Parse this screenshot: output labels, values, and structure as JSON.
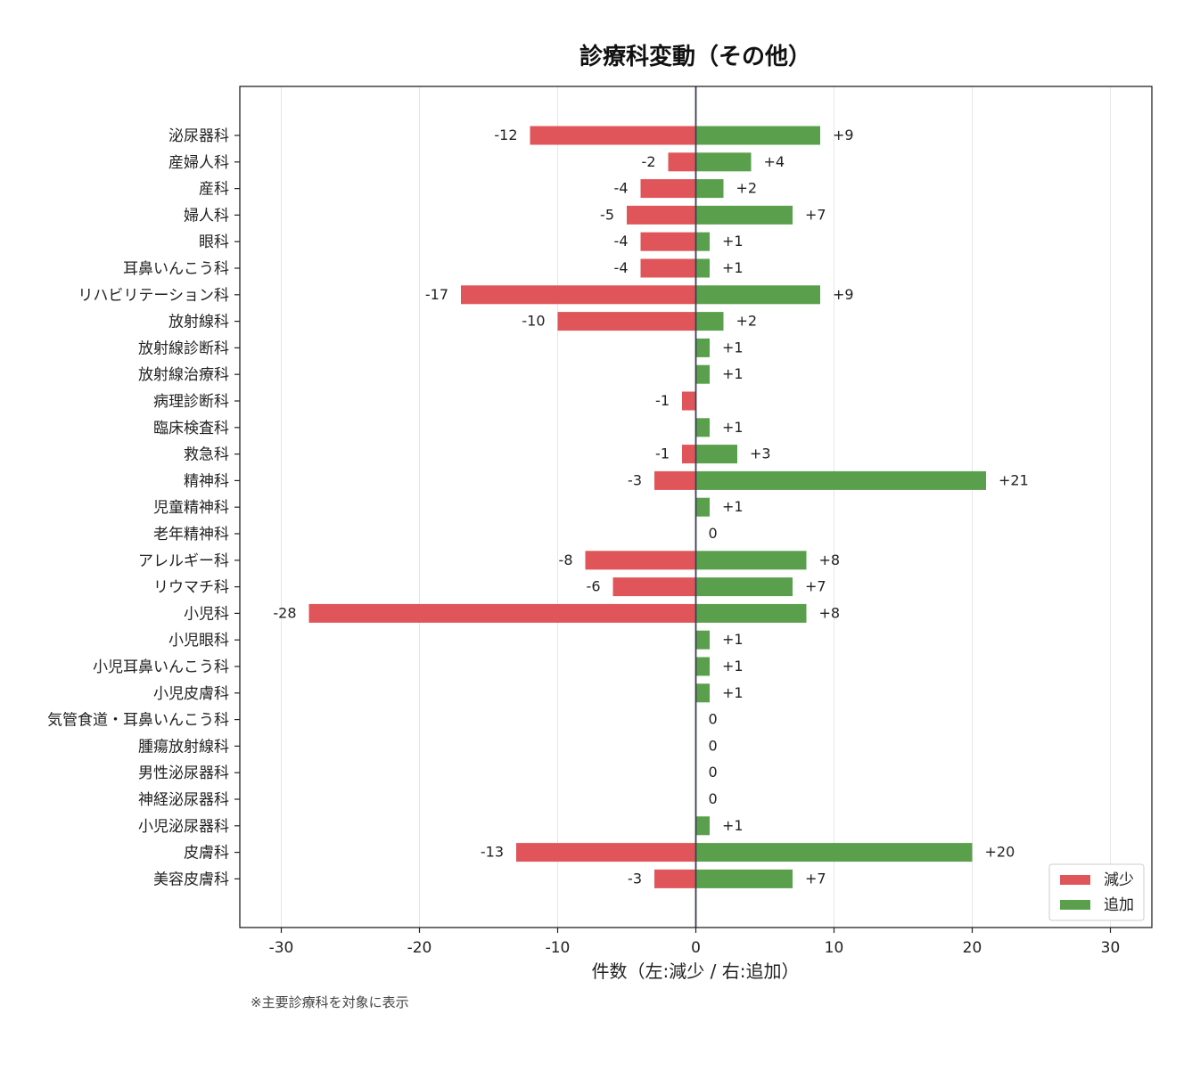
{
  "chart_data": {
    "type": "bar",
    "orientation": "horizontal-diverging",
    "title": "診療科変動（その他）",
    "xlabel": "件数（左:減少 / 右:追加）",
    "note": "※主要診療科を対象に表示",
    "xlim": [
      -33,
      33
    ],
    "xticks": [
      -30,
      -20,
      -10,
      0,
      10,
      20,
      30
    ],
    "xtick_labels": [
      "-30",
      "-20",
      "-10",
      "0",
      "10",
      "20",
      "30"
    ],
    "grid": "vertical",
    "legend_position": "lower-right",
    "categories": [
      "泌尿器科",
      "産婦人科",
      "産科",
      "婦人科",
      "眼科",
      "耳鼻いんこう科",
      "リハビリテーション科",
      "放射線科",
      "放射線診断科",
      "放射線治療科",
      "病理診断科",
      "臨床検査科",
      "救急科",
      "精神科",
      "児童精神科",
      "老年精神科",
      "アレルギー科",
      "リウマチ科",
      "小児科",
      "小児眼科",
      "小児耳鼻いんこう科",
      "小児皮膚科",
      "気管食道・耳鼻いんこう科",
      "腫瘍放射線科",
      "男性泌尿器科",
      "神経泌尿器科",
      "小児泌尿器科",
      "皮膚科",
      "美容皮膚科"
    ],
    "series": [
      {
        "name": "減少",
        "color": "#e05559",
        "values": [
          -12,
          -2,
          -4,
          -5,
          -4,
          -4,
          -17,
          -10,
          0,
          0,
          -1,
          0,
          -1,
          -3,
          0,
          0,
          -8,
          -6,
          -28,
          0,
          0,
          0,
          0,
          0,
          0,
          0,
          0,
          -13,
          -3
        ],
        "labels": [
          "-12",
          "-2",
          "-4",
          "-5",
          "-4",
          "-4",
          "-17",
          "-10",
          "",
          "",
          "-1",
          "",
          "-1",
          "-3",
          "",
          "",
          "-8",
          "-6",
          "-28",
          "",
          "",
          "",
          "",
          "",
          "",
          "",
          "",
          "-13",
          "-3"
        ]
      },
      {
        "name": "追加",
        "color": "#5aa04c",
        "values": [
          9,
          4,
          2,
          7,
          1,
          1,
          9,
          2,
          1,
          1,
          0,
          1,
          3,
          21,
          1,
          0,
          8,
          7,
          8,
          1,
          1,
          1,
          0,
          0,
          0,
          0,
          1,
          20,
          7
        ],
        "labels": [
          "+9",
          "+4",
          "+2",
          "+7",
          "+1",
          "+1",
          "+9",
          "+2",
          "+1",
          "+1",
          "",
          "+1",
          "+3",
          "+21",
          "+1",
          "0",
          "+8",
          "+7",
          "+8",
          "+1",
          "+1",
          "+1",
          "0",
          "0",
          "0",
          "0",
          "+1",
          "+20",
          "+7"
        ]
      }
    ]
  }
}
